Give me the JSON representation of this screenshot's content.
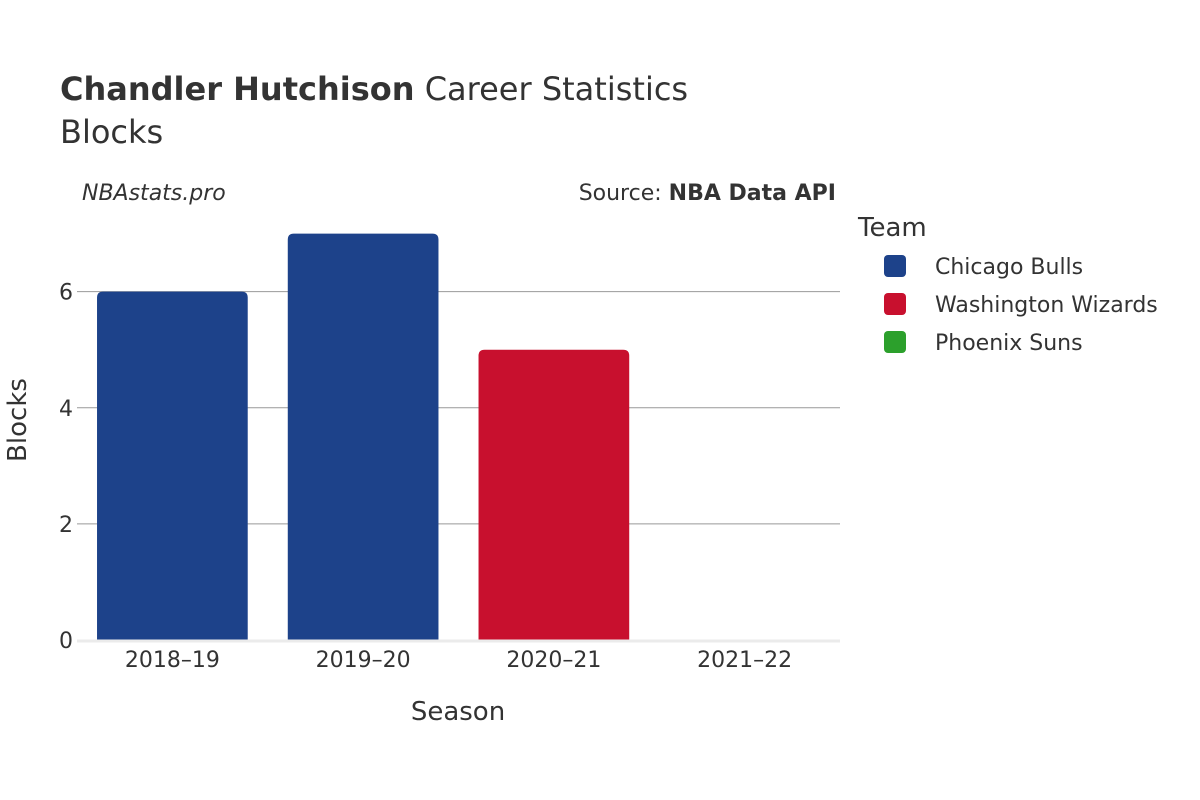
{
  "header": {
    "title_bold": "Chandler Hutchison",
    "title_rest": "Career Statistics",
    "subtitle": "Blocks",
    "brand": "NBAstats.pro",
    "source_prefix": "Source: ",
    "source_name": "NBA Data API"
  },
  "legend": {
    "title": "Team",
    "items": [
      {
        "label": "Chicago Bulls",
        "color": "#1d428a"
      },
      {
        "label": "Washington Wizards",
        "color": "#c8102e"
      },
      {
        "label": "Phoenix Suns",
        "color": "#2ca02c"
      }
    ]
  },
  "chart_data": {
    "type": "bar",
    "title": "Chandler Hutchison Career Statistics",
    "subtitle": "Blocks",
    "xlabel": "Season",
    "ylabel": "Blocks",
    "categories": [
      "2018–19",
      "2019–20",
      "2020–21",
      "2021–22"
    ],
    "series": [
      {
        "name": "Chicago Bulls",
        "color": "#1d428a",
        "values": [
          6,
          7,
          null,
          null
        ]
      },
      {
        "name": "Washington Wizards",
        "color": "#c8102e",
        "values": [
          null,
          null,
          5,
          null
        ]
      },
      {
        "name": "Phoenix Suns",
        "color": "#2ca02c",
        "values": [
          null,
          null,
          null,
          0
        ]
      }
    ],
    "ylim": [
      0,
      7.2
    ],
    "yticks": [
      0,
      2,
      4,
      6
    ],
    "grid": true,
    "legend_position": "right"
  }
}
